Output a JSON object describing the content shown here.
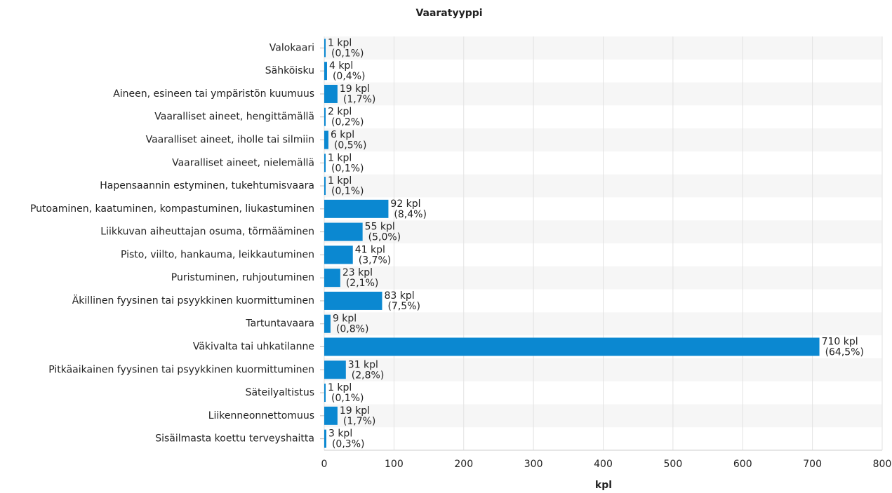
{
  "chart_data": {
    "type": "hbar",
    "title": "Vaaratyyppi",
    "xlabel": "kpl",
    "categories": [
      "Valokaari",
      "Sähköisku",
      "Aineen, esineen tai ympäristön kuumuus",
      "Vaaralliset aineet, hengittämällä",
      "Vaaralliset aineet, iholle tai silmiin",
      "Vaaralliset aineet, nielemällä",
      "Hapensaannin estyminen, tukehtumisvaara",
      "Putoaminen, kaatuminen, kompastuminen, liukastuminen",
      "Liikkuvan aiheuttajan osuma, törmääminen",
      "Pisto, viilto, hankauma, leikkautuminen",
      "Puristuminen, ruhjoutuminen",
      "Äkillinen fyysinen tai psyykkinen kuormittuminen",
      "Tartuntavaara",
      "Väkivalta tai uhkatilanne",
      "Pitkäaikainen fyysinen tai psyykkinen kuormittuminen",
      "Säteilyaltistus",
      "Liikenneonnettomuus",
      "Sisäilmasta koettu terveyshaitta"
    ],
    "values": [
      1,
      4,
      19,
      2,
      6,
      1,
      1,
      92,
      55,
      41,
      23,
      83,
      9,
      710,
      31,
      1,
      19,
      3
    ],
    "value_labels": [
      [
        "1 kpl",
        "(0,1%)"
      ],
      [
        "4 kpl",
        "(0,4%)"
      ],
      [
        "19 kpl",
        "(1,7%)"
      ],
      [
        "2 kpl",
        "(0,2%)"
      ],
      [
        "6 kpl",
        "(0,5%)"
      ],
      [
        "1 kpl",
        "(0,1%)"
      ],
      [
        "1 kpl",
        "(0,1%)"
      ],
      [
        "92 kpl",
        "(8,4%)"
      ],
      [
        "55 kpl",
        "(5,0%)"
      ],
      [
        "41 kpl",
        "(3,7%)"
      ],
      [
        "23 kpl",
        "(2,1%)"
      ],
      [
        "83 kpl",
        "(7,5%)"
      ],
      [
        "9 kpl",
        "(0,8%)"
      ],
      [
        "710 kpl",
        "(64,5%)"
      ],
      [
        "31 kpl",
        "(2,8%)"
      ],
      [
        "1 kpl",
        "(0,1%)"
      ],
      [
        "19 kpl",
        "(1,7%)"
      ],
      [
        "3 kpl",
        "(0,3%)"
      ]
    ],
    "color": "#0b88d1",
    "xlim": [
      0,
      800
    ],
    "xticks": [
      0,
      100,
      200,
      300,
      400,
      500,
      600,
      700,
      800
    ],
    "grid": true
  }
}
